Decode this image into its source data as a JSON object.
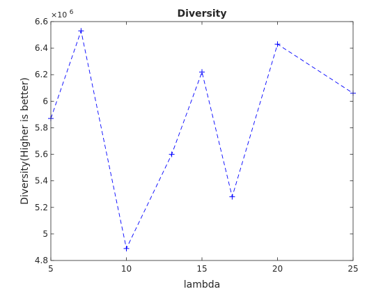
{
  "chart_data": {
    "type": "line",
    "title": "Diversity",
    "xlabel": "lambda",
    "ylabel": "Diversity(Higher is better)",
    "y_exponent_base": "×10",
    "y_exponent_power": "6",
    "xlim": [
      5,
      25
    ],
    "ylim": [
      4.8,
      6.6
    ],
    "x_ticks": [
      5,
      10,
      15,
      20,
      25
    ],
    "y_ticks": [
      4.8,
      5,
      5.2,
      5.4,
      5.6,
      5.8,
      6,
      6.2,
      6.4,
      6.6
    ],
    "x_tick_labels": [
      "5",
      "10",
      "15",
      "20",
      "25"
    ],
    "y_tick_labels": [
      "4.8",
      "5",
      "5.2",
      "5.4",
      "5.6",
      "5.8",
      "6",
      "6.2",
      "6.4",
      "6.6"
    ],
    "series": [
      {
        "x": [
          5,
          7,
          10,
          13,
          15,
          17,
          20,
          25
        ],
        "values": [
          5.87,
          6.53,
          4.89,
          5.6,
          6.22,
          5.28,
          6.43,
          6.06
        ],
        "color": "#0000ff",
        "line_style": "dashed",
        "marker": "plus"
      }
    ],
    "grid": false,
    "box": true
  }
}
